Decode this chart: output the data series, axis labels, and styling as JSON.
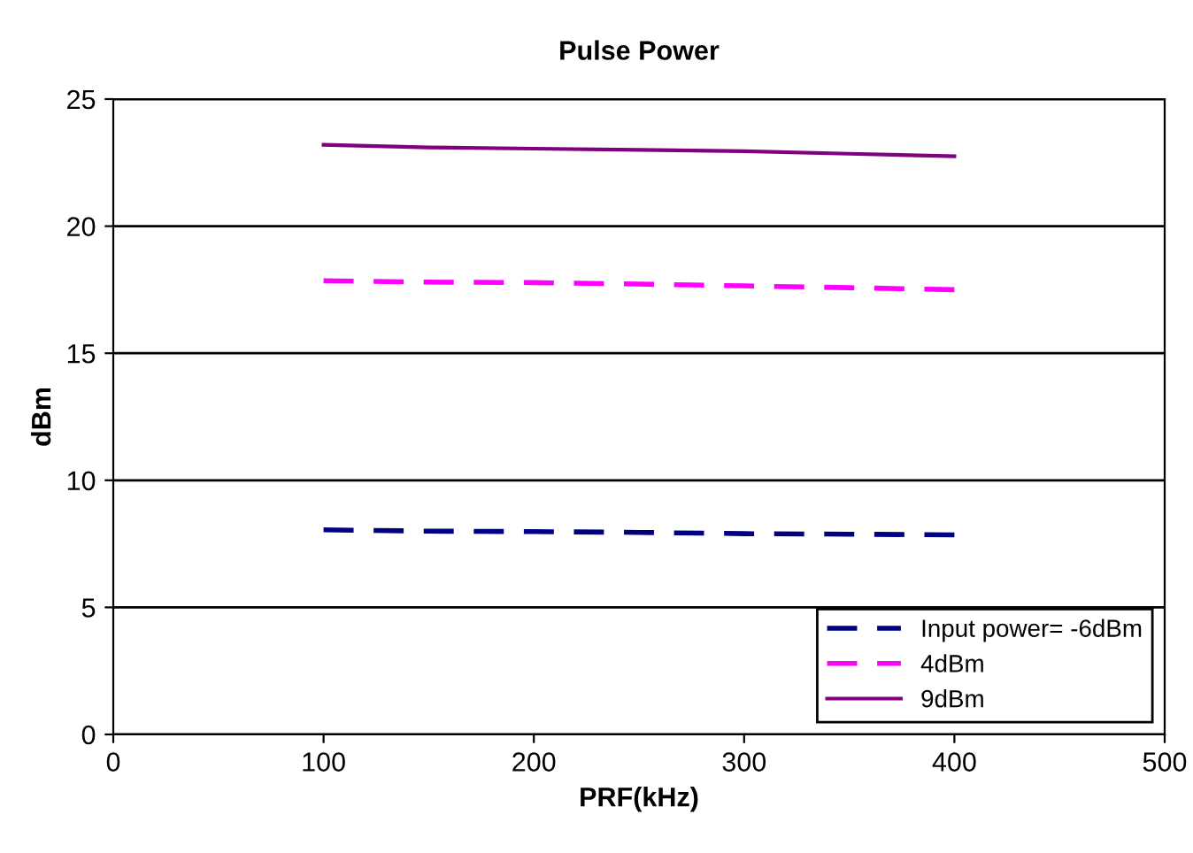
{
  "chart_data": {
    "type": "line",
    "title": "Pulse Power",
    "xlabel": "PRF(kHz)",
    "ylabel": "dBm",
    "x": [
      100,
      150,
      200,
      250,
      300,
      350,
      400
    ],
    "series": [
      {
        "name": "Input power= -6dBm",
        "color": "#000080",
        "line_style": "dotted",
        "values": [
          8.05,
          8.0,
          7.98,
          7.95,
          7.9,
          7.88,
          7.85
        ]
      },
      {
        "name": "4dBm",
        "color": "#ff00ff",
        "line_style": "dashed",
        "values": [
          17.85,
          17.8,
          17.78,
          17.72,
          17.65,
          17.58,
          17.5
        ]
      },
      {
        "name": "9dBm",
        "color": "#800080",
        "line_style": "solid",
        "values": [
          23.2,
          23.1,
          23.05,
          23.0,
          22.95,
          22.85,
          22.75
        ]
      }
    ],
    "xlim": [
      0,
      500
    ],
    "xticks": [
      0,
      100,
      200,
      300,
      400,
      500
    ],
    "ylim": [
      0,
      25
    ],
    "yticks": [
      0,
      5,
      10,
      15,
      20,
      25
    ],
    "grid": "y",
    "legend": "lower right",
    "marker": "none"
  }
}
